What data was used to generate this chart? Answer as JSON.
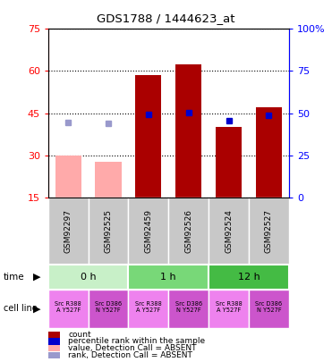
{
  "title": "GDS1788 / 1444623_at",
  "samples": [
    "GSM92297",
    "GSM92525",
    "GSM92459",
    "GSM92526",
    "GSM92524",
    "GSM92527"
  ],
  "count_values": [
    30.0,
    27.5,
    58.5,
    62.5,
    40.0,
    47.0
  ],
  "count_absent": [
    true,
    true,
    false,
    false,
    false,
    false
  ],
  "rank_values": [
    44.5,
    44.0,
    49.5,
    50.5,
    45.5,
    48.5
  ],
  "rank_absent": [
    true,
    true,
    false,
    false,
    false,
    false
  ],
  "ylim_left": [
    15,
    75
  ],
  "ylim_right": [
    0,
    100
  ],
  "yticks_left": [
    15,
    30,
    45,
    60,
    75
  ],
  "yticks_right": [
    0,
    25,
    50,
    75,
    100
  ],
  "ytick_labels_right": [
    "0",
    "25",
    "50",
    "75",
    "100%"
  ],
  "time_groups": [
    {
      "label": "0 h",
      "cols": [
        0,
        1
      ],
      "color": "#c8f0c8"
    },
    {
      "label": "1 h",
      "cols": [
        2,
        3
      ],
      "color": "#78d878"
    },
    {
      "label": "12 h",
      "cols": [
        4,
        5
      ],
      "color": "#44bb44"
    }
  ],
  "cell_line_groups": [
    {
      "label": "Src R388\nA Y527F",
      "col": 0,
      "color": "#ee82ee"
    },
    {
      "label": "Src D386\nN Y527F",
      "col": 1,
      "color": "#cc55cc"
    },
    {
      "label": "Src R388\nA Y527F",
      "col": 2,
      "color": "#ee82ee"
    },
    {
      "label": "Src D386\nN Y527F",
      "col": 3,
      "color": "#cc55cc"
    },
    {
      "label": "Src R388\nA Y527F",
      "col": 4,
      "color": "#ee82ee"
    },
    {
      "label": "Src D386\nN Y527F",
      "col": 5,
      "color": "#cc55cc"
    }
  ],
  "bar_color_present": "#aa0000",
  "bar_color_absent": "#ffaaaa",
  "rank_color_present": "#0000cc",
  "rank_color_absent": "#9999cc",
  "bar_width": 0.65,
  "legend_items": [
    {
      "color": "#aa0000",
      "label": "count"
    },
    {
      "color": "#0000cc",
      "label": "percentile rank within the sample"
    },
    {
      "color": "#ffaaaa",
      "label": "value, Detection Call = ABSENT"
    },
    {
      "color": "#9999cc",
      "label": "rank, Detection Call = ABSENT"
    }
  ]
}
